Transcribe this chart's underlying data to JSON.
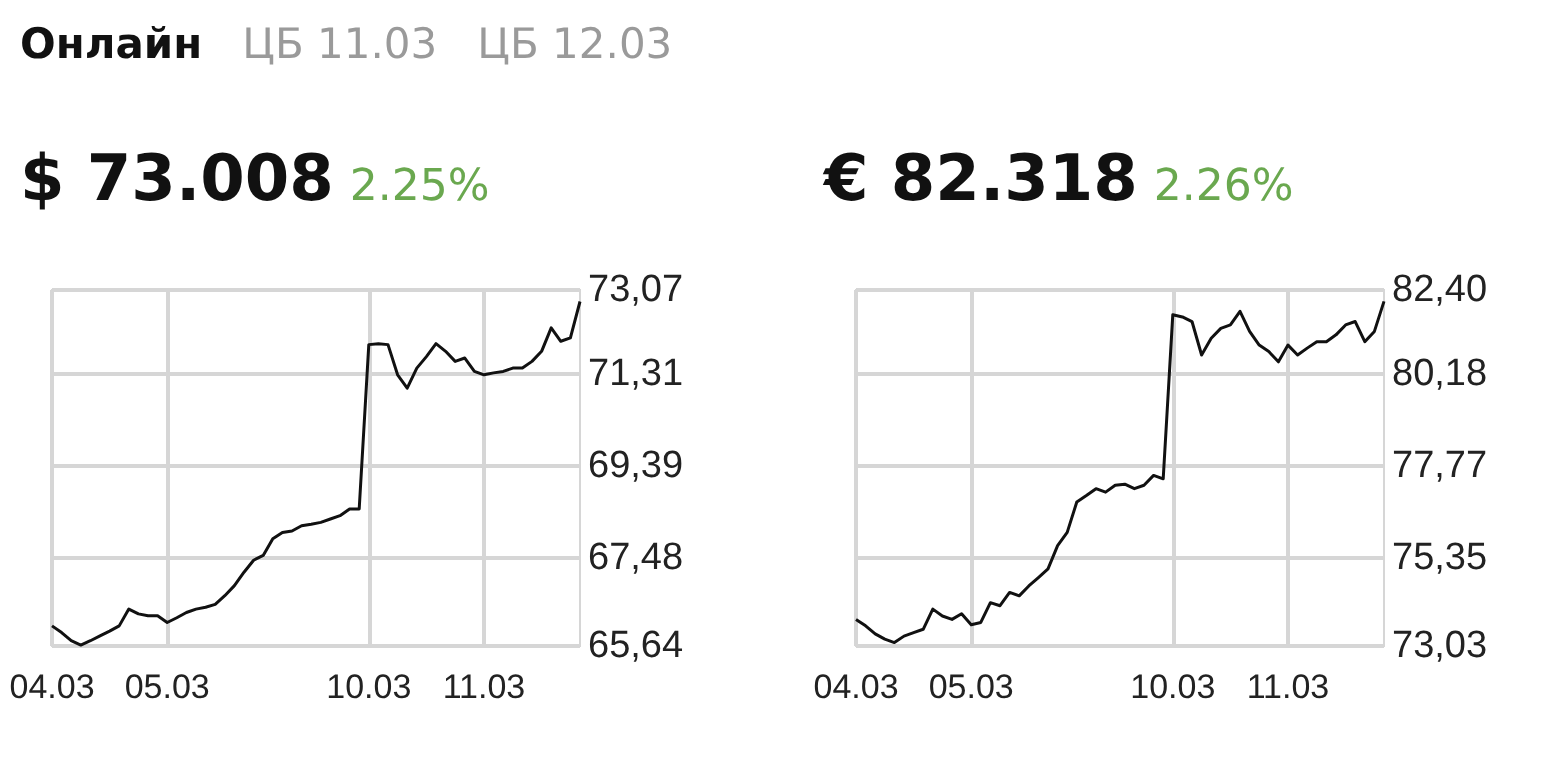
{
  "chart_data": [
    {
      "type": "line",
      "title": "$ 73.008",
      "subtitle": "2.25%",
      "annotations": [
        "Онлайн",
        "ЦБ 11.03",
        "ЦБ 12.03"
      ],
      "categories": [
        "04.03",
        null,
        null,
        null,
        null,
        null,
        null,
        null,
        null,
        null,
        null,
        null,
        "05.03",
        null,
        null,
        null,
        null,
        null,
        null,
        null,
        null,
        null,
        null,
        null,
        null,
        null,
        null,
        null,
        null,
        null,
        null,
        null,
        null,
        "10.03",
        null,
        null,
        null,
        null,
        null,
        null,
        null,
        null,
        null,
        null,
        null,
        "11.03",
        null,
        null,
        null,
        null,
        null,
        null,
        null,
        null,
        null,
        null
      ],
      "series": [
        {
          "color": "#111111",
          "values": [
            66.06,
            65.92,
            65.75,
            65.66,
            65.75,
            65.85,
            65.95,
            66.06,
            66.41,
            66.31,
            66.27,
            66.27,
            66.13,
            66.23,
            66.34,
            66.41,
            66.45,
            66.51,
            66.69,
            66.9,
            67.18,
            67.43,
            67.53,
            67.88,
            68.01,
            68.04,
            68.15,
            68.18,
            68.22,
            68.29,
            68.36,
            68.5,
            68.5,
            71.93,
            71.95,
            71.93,
            71.3,
            71.02,
            71.44,
            71.68,
            71.95,
            71.79,
            71.58,
            71.65,
            71.37,
            71.3,
            71.34,
            71.37,
            71.44,
            71.44,
            71.58,
            71.79,
            72.28,
            72.0,
            72.07,
            72.83
          ]
        }
      ],
      "ylim": [
        65.64,
        73.07
      ],
      "yticks": [
        {
          "value": 65.64,
          "label": "65,64"
        },
        {
          "value": 67.48,
          "label": "67,48"
        },
        {
          "value": 69.39,
          "label": "69,39"
        },
        {
          "value": 71.31,
          "label": "71,31"
        },
        {
          "value": 73.07,
          "label": "73,07"
        }
      ],
      "grid": true,
      "marker": "none",
      "line_style": "solid"
    },
    {
      "type": "line",
      "title": "€ 82.318",
      "subtitle": "2.26%",
      "categories": [
        "04.03",
        null,
        null,
        null,
        null,
        null,
        null,
        null,
        null,
        null,
        null,
        null,
        "05.03",
        null,
        null,
        null,
        null,
        null,
        null,
        null,
        null,
        null,
        null,
        null,
        null,
        null,
        null,
        null,
        null,
        null,
        null,
        null,
        null,
        "10.03",
        null,
        null,
        null,
        null,
        null,
        null,
        null,
        null,
        null,
        null,
        null,
        "11.03",
        null,
        null,
        null,
        null,
        null,
        null,
        null,
        null,
        null,
        null
      ],
      "series": [
        {
          "color": "#111111",
          "values": [
            73.73,
            73.56,
            73.35,
            73.21,
            73.12,
            73.29,
            73.38,
            73.47,
            74.0,
            73.82,
            73.73,
            73.88,
            73.59,
            73.65,
            74.17,
            74.09,
            74.44,
            74.35,
            74.61,
            74.83,
            75.06,
            75.67,
            76.02,
            76.82,
            76.99,
            77.17,
            77.08,
            77.26,
            77.29,
            77.17,
            77.26,
            77.52,
            77.43,
            81.75,
            81.69,
            81.57,
            80.69,
            81.13,
            81.39,
            81.48,
            81.84,
            81.31,
            80.95,
            80.78,
            80.51,
            80.95,
            80.69,
            80.87,
            81.04,
            81.04,
            81.22,
            81.48,
            81.57,
            81.04,
            81.31,
            82.1
          ]
        }
      ],
      "ylim": [
        73.03,
        82.4
      ],
      "yticks": [
        {
          "value": 73.03,
          "label": "73,03"
        },
        {
          "value": 75.35,
          "label": "75,35"
        },
        {
          "value": 77.77,
          "label": "77,77"
        },
        {
          "value": 80.18,
          "label": "80,18"
        },
        {
          "value": 82.4,
          "label": "82,40"
        }
      ],
      "grid": true,
      "marker": "none",
      "line_style": "solid"
    }
  ]
}
